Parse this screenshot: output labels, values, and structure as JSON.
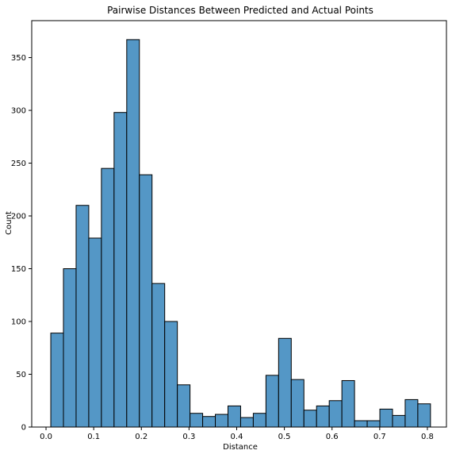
{
  "chart_data": {
    "type": "bar",
    "title": "Pairwise Distances Between Predicted and Actual Points",
    "xlabel": "Distance",
    "ylabel": "Count",
    "xlim": [
      -0.03,
      0.84
    ],
    "ylim": [
      0,
      385
    ],
    "xticks": [
      0.0,
      0.1,
      0.2,
      0.3,
      0.4,
      0.5,
      0.6,
      0.7,
      0.8
    ],
    "xtick_labels": [
      "0.0",
      "0.1",
      "0.2",
      "0.3",
      "0.4",
      "0.5",
      "0.6",
      "0.7",
      "0.8"
    ],
    "yticks": [
      0,
      50,
      100,
      150,
      200,
      250,
      300,
      350
    ],
    "ytick_labels": [
      "0",
      "50",
      "100",
      "150",
      "200",
      "250",
      "300",
      "350"
    ],
    "bin_start": 0.01,
    "bin_width": 0.02655,
    "values": [
      89,
      150,
      210,
      179,
      245,
      298,
      367,
      239,
      136,
      100,
      40,
      13,
      10,
      12,
      20,
      9,
      13,
      49,
      84,
      45,
      16,
      20,
      25,
      44,
      6,
      6,
      17,
      11,
      26,
      22
    ],
    "bar_color": "#5497c6",
    "edge_color": "#000000",
    "grid": false,
    "legend": "none"
  }
}
